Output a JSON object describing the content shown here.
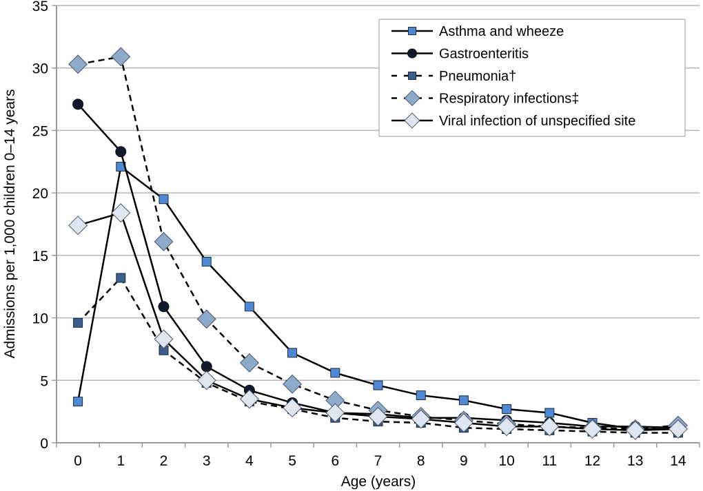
{
  "chart_data": {
    "type": "line",
    "title": "",
    "xlabel": "Age (years)",
    "ylabel": "Admissions per 1,000 children 0–14 years",
    "ylim": [
      0,
      35
    ],
    "yticks": [
      "0",
      "5",
      "10",
      "15",
      "20",
      "25",
      "30",
      "35"
    ],
    "categories": [
      "0",
      "1",
      "2",
      "3",
      "4",
      "5",
      "6",
      "7",
      "8",
      "9",
      "10",
      "11",
      "12",
      "13",
      "14"
    ],
    "grid": true,
    "legend_position": "top-right",
    "series": [
      {
        "name": "Asthma and wheeze",
        "marker": "square",
        "dashed": false,
        "color": "#4f88d4",
        "values": [
          3.3,
          22.1,
          19.5,
          14.5,
          10.9,
          7.2,
          5.6,
          4.6,
          3.8,
          3.4,
          2.7,
          2.4,
          1.6,
          1.1,
          1.1
        ]
      },
      {
        "name": "Gastroenteritis",
        "marker": "circle",
        "dashed": false,
        "color": "#111a2a",
        "values": [
          27.1,
          23.3,
          10.9,
          6.1,
          4.2,
          3.2,
          2.4,
          2.3,
          2.0,
          2.0,
          1.8,
          1.6,
          1.3,
          1.3,
          1.2
        ]
      },
      {
        "name": "Pneumonia†",
        "marker": "square",
        "dashed": true,
        "color": "#3a5f8f",
        "values": [
          9.6,
          13.2,
          7.4,
          4.8,
          3.3,
          2.7,
          2.0,
          1.7,
          1.6,
          1.2,
          1.1,
          1.0,
          0.9,
          0.8,
          0.8
        ]
      },
      {
        "name": "Respiratory infections‡",
        "marker": "diamond",
        "dashed": true,
        "color": "#8eaacb",
        "values": [
          30.3,
          30.9,
          16.1,
          9.9,
          6.4,
          4.7,
          3.4,
          2.6,
          2.1,
          1.8,
          1.5,
          1.3,
          1.2,
          1.1,
          1.4
        ]
      },
      {
        "name": "Viral infection of unspecified site",
        "marker": "diamond",
        "dashed": false,
        "color": "#dde6f1",
        "values": [
          17.4,
          18.4,
          8.3,
          5.0,
          3.5,
          2.8,
          2.4,
          2.1,
          1.9,
          1.6,
          1.3,
          1.3,
          1.1,
          1.0,
          1.1
        ]
      }
    ]
  }
}
